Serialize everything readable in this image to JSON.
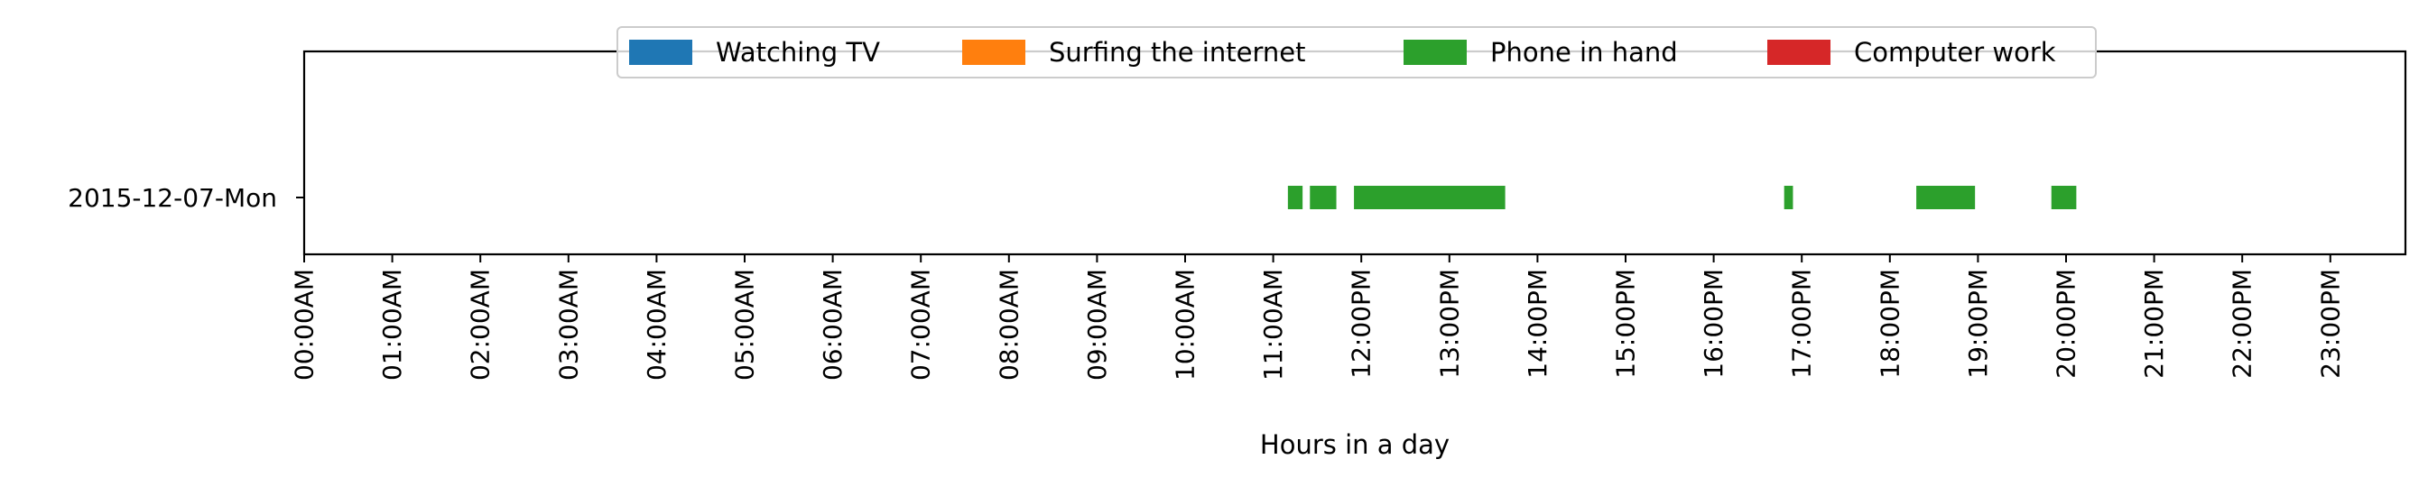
{
  "chart_data": {
    "type": "timeline",
    "xlabel": "Hours in a day",
    "ylabel": "",
    "xlim_hours": [
      0,
      24
    ],
    "x_tick_labels": [
      "00:00AM",
      "01:00AM",
      "02:00AM",
      "03:00AM",
      "04:00AM",
      "05:00AM",
      "06:00AM",
      "07:00AM",
      "08:00AM",
      "09:00AM",
      "10:00AM",
      "11:00AM",
      "12:00PM",
      "13:00PM",
      "14:00PM",
      "15:00PM",
      "16:00PM",
      "17:00PM",
      "18:00PM",
      "19:00PM",
      "20:00PM",
      "21:00PM",
      "22:00PM",
      "23:00PM"
    ],
    "categories": [
      "2015-12-07-Mon"
    ],
    "legend_position": "top-center",
    "grid": false,
    "series": [
      {
        "name": "Watching TV",
        "color": "#1f77b4",
        "segments": []
      },
      {
        "name": "Surfing the internet",
        "color": "#ff7f0e",
        "segments": []
      },
      {
        "name": "Phone in hand",
        "color": "#2ca02c",
        "segments": [
          {
            "row": "2015-12-07-Mon",
            "start": "11:10",
            "end": "11:20"
          },
          {
            "row": "2015-12-07-Mon",
            "start": "11:25",
            "end": "11:43"
          },
          {
            "row": "2015-12-07-Mon",
            "start": "11:55",
            "end": "13:38"
          },
          {
            "row": "2015-12-07-Mon",
            "start": "16:48",
            "end": "16:54"
          },
          {
            "row": "2015-12-07-Mon",
            "start": "18:18",
            "end": "18:58"
          },
          {
            "row": "2015-12-07-Mon",
            "start": "19:50",
            "end": "20:07"
          }
        ]
      },
      {
        "name": "Computer work",
        "color": "#d62728",
        "segments": []
      }
    ]
  }
}
